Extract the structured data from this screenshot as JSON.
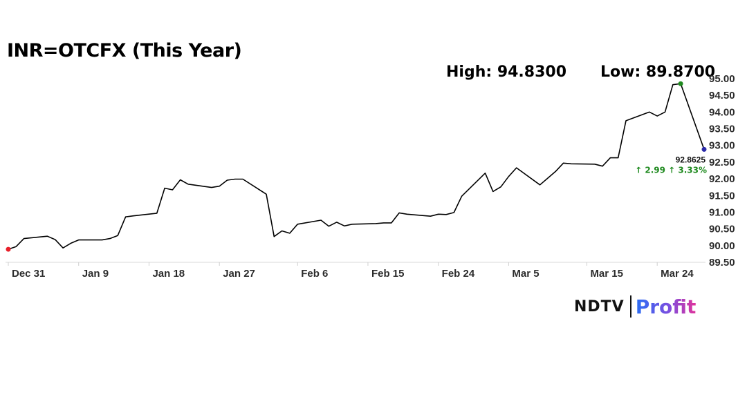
{
  "header": {
    "title": "INR=OTCFX (This Year)",
    "high_label": "High: 94.8300",
    "low_label": "Low: 89.8700"
  },
  "logo": {
    "brand": "NDTV",
    "product": "Profit"
  },
  "chart_data": {
    "type": "line",
    "title": "INR=OTCFX (This Year)",
    "xlabel": "",
    "ylabel": "",
    "x_ticks": [
      "Dec 31",
      "Jan 9",
      "Jan 18",
      "Jan 27",
      "Feb 6",
      "Feb 15",
      "Feb 24",
      "Mar 5",
      "Mar 15",
      "Mar 24"
    ],
    "y_ticks": [
      "95.00",
      "94.50",
      "94.00",
      "93.50",
      "93.00",
      "92.50",
      "92.00",
      "91.50",
      "91.00",
      "90.50",
      "90.00",
      "89.50"
    ],
    "ylim": [
      89.5,
      95.0
    ],
    "y_axis_position": "right",
    "grid": false,
    "series": [
      {
        "color": "#000000",
        "points": [
          [
            "Dec 31",
            89.87
          ],
          [
            "Jan 1",
            89.95
          ],
          [
            "Jan 2",
            90.19
          ],
          [
            "Jan 5",
            90.26
          ],
          [
            "Jan 6",
            90.16
          ],
          [
            "Jan 7",
            89.91
          ],
          [
            "Jan 8",
            90.05
          ],
          [
            "Jan 9",
            90.15
          ],
          [
            "Jan 12",
            90.15
          ],
          [
            "Jan 13",
            90.19
          ],
          [
            "Jan 14",
            90.28
          ],
          [
            "Jan 15",
            90.84
          ],
          [
            "Jan 16",
            90.87
          ],
          [
            "Jan 19",
            90.95
          ],
          [
            "Jan 20",
            91.7
          ],
          [
            "Jan 21",
            91.65
          ],
          [
            "Jan 22",
            91.95
          ],
          [
            "Jan 23",
            91.82
          ],
          [
            "Jan 26",
            91.72
          ],
          [
            "Jan 27",
            91.76
          ],
          [
            "Jan 28",
            91.94
          ],
          [
            "Jan 29",
            91.97
          ],
          [
            "Jan 30",
            91.97
          ],
          [
            "Feb 2",
            91.52
          ],
          [
            "Feb 3",
            90.25
          ],
          [
            "Feb 4",
            90.42
          ],
          [
            "Feb 5",
            90.35
          ],
          [
            "Feb 6",
            90.62
          ],
          [
            "Feb 9",
            90.74
          ],
          [
            "Feb 10",
            90.56
          ],
          [
            "Feb 11",
            90.68
          ],
          [
            "Feb 12",
            90.57
          ],
          [
            "Feb 13",
            90.62
          ],
          [
            "Feb 16",
            90.64
          ],
          [
            "Feb 17",
            90.66
          ],
          [
            "Feb 18",
            90.66
          ],
          [
            "Feb 19",
            90.96
          ],
          [
            "Feb 20",
            90.92
          ],
          [
            "Feb 23",
            90.86
          ],
          [
            "Feb 24",
            90.92
          ],
          [
            "Feb 25",
            90.91
          ],
          [
            "Feb 26",
            90.97
          ],
          [
            "Feb 27",
            91.46
          ],
          [
            "Mar 2",
            92.15
          ],
          [
            "Mar 3",
            91.6
          ],
          [
            "Mar 4",
            91.74
          ],
          [
            "Mar 5",
            92.05
          ],
          [
            "Mar 6",
            92.31
          ],
          [
            "Mar 9",
            91.8
          ],
          [
            "Mar 10",
            92.0
          ],
          [
            "Mar 11",
            92.2
          ],
          [
            "Mar 12",
            92.45
          ],
          [
            "Mar 13",
            92.43
          ],
          [
            "Mar 16",
            92.42
          ],
          [
            "Mar 17",
            92.36
          ],
          [
            "Mar 18",
            92.61
          ],
          [
            "Mar 19",
            92.61
          ],
          [
            "Mar 20",
            93.72
          ],
          [
            "Mar 23",
            93.98
          ],
          [
            "Mar 24",
            93.86
          ],
          [
            "Mar 25",
            93.98
          ],
          [
            "Mar 26",
            94.8
          ],
          [
            "Mar 27",
            94.83
          ],
          [
            "Mar 30",
            92.8625
          ]
        ]
      }
    ],
    "markers": [
      {
        "name": "start",
        "x": "Dec 31",
        "y": 89.87,
        "color": "#e8202a"
      },
      {
        "name": "high",
        "x": "Mar 27",
        "y": 94.83,
        "color": "#1f8a1f"
      },
      {
        "name": "last",
        "x": "Mar 30",
        "y": 92.8625,
        "color": "#2a2aa8"
      }
    ],
    "last_value": "92.8625",
    "change_label": "↑ 2.99 ↑ 3.33%",
    "change_color": "#1f8a1f"
  }
}
